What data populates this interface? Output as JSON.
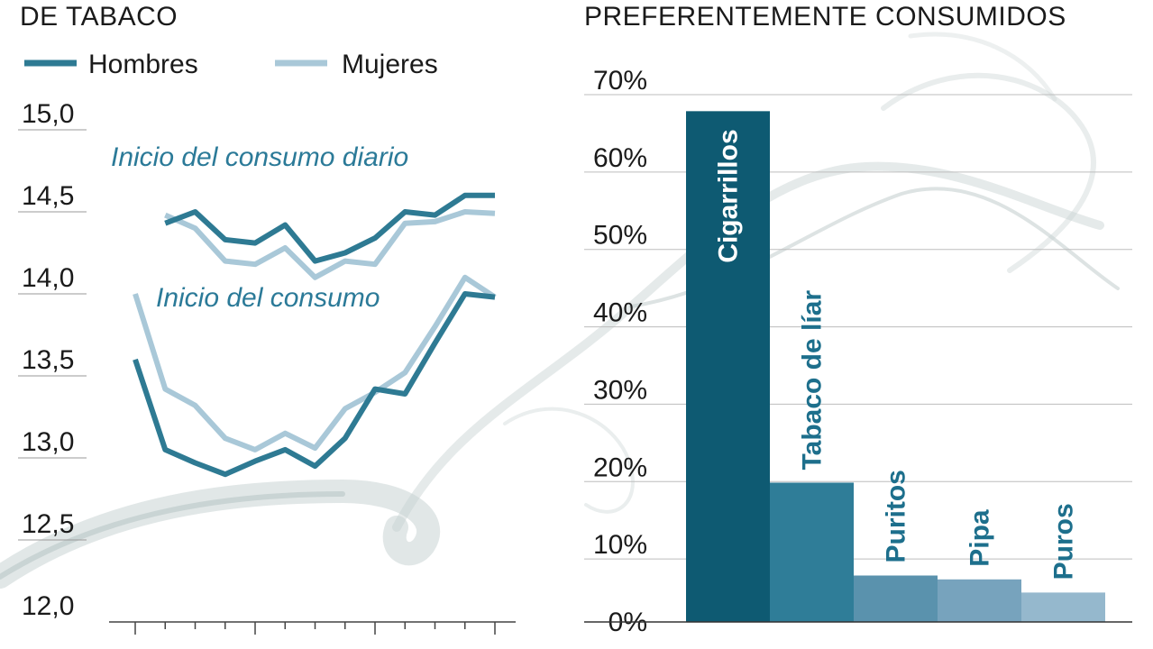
{
  "colors": {
    "hombres": "#2e7a93",
    "mujeres": "#a9c8d8",
    "annotation": "#2b7a98",
    "bars": [
      "#0e5a72",
      "#2f7d98",
      "#5a92ad",
      "#77a3bd",
      "#95b8cd"
    ],
    "bar_label_dark_bg": "#ffffff",
    "bar_label_light_bg": "#1d6f8c",
    "smoke": "#b9c8c8"
  },
  "icons": [
    "smoke-decoration"
  ],
  "chart_data": [
    {
      "type": "line",
      "title": "DE TABACO",
      "ylim": [
        12.0,
        15.0
      ],
      "yticks": [
        "15,0",
        "14,5",
        "14,0",
        "13,5",
        "13,0",
        "12,5",
        "12,0"
      ],
      "ytick_values": [
        15.0,
        14.5,
        14.0,
        13.5,
        13.0,
        12.5,
        12.0
      ],
      "grid": true,
      "legend": "top-left",
      "legend_entries": [
        "Hombres",
        "Mujeres"
      ],
      "x": [
        1,
        2,
        3,
        4,
        5,
        6,
        7,
        8,
        9,
        10,
        11,
        12,
        13
      ],
      "annotations": [
        "Inicio del consumo diario",
        "Inicio del consumo"
      ],
      "series": [
        {
          "name": "Hombres",
          "group": "Inicio del consumo diario",
          "x": [
            2,
            3,
            4,
            5,
            6,
            7,
            8,
            9,
            10,
            11,
            12,
            13
          ],
          "values": [
            14.43,
            14.5,
            14.33,
            14.31,
            14.42,
            14.2,
            14.25,
            14.34,
            14.5,
            14.48,
            14.6,
            14.6
          ]
        },
        {
          "name": "Mujeres",
          "group": "Inicio del consumo diario",
          "x": [
            2,
            3,
            4,
            5,
            6,
            7,
            8,
            9,
            10,
            11,
            12,
            13
          ],
          "values": [
            14.48,
            14.4,
            14.2,
            14.18,
            14.28,
            14.1,
            14.2,
            14.18,
            14.43,
            14.44,
            14.5,
            14.49
          ]
        },
        {
          "name": "Hombres",
          "group": "Inicio del consumo",
          "x": [
            1,
            2,
            3,
            4,
            5,
            6,
            7,
            8,
            9,
            10,
            11,
            12,
            13
          ],
          "values": [
            13.6,
            13.05,
            12.97,
            12.9,
            12.98,
            13.05,
            12.95,
            13.12,
            13.42,
            13.39,
            13.7,
            14.0,
            13.98
          ]
        },
        {
          "name": "Mujeres",
          "group": "Inicio del consumo",
          "x": [
            1,
            2,
            3,
            4,
            5,
            6,
            7,
            8,
            9,
            10,
            11,
            12,
            13
          ],
          "values": [
            14.0,
            13.42,
            13.32,
            13.12,
            13.05,
            13.15,
            13.06,
            13.3,
            13.4,
            13.52,
            13.8,
            14.1,
            13.98
          ]
        }
      ]
    },
    {
      "type": "bar",
      "title": "PREFERENTEMENTE CONSUMIDOS",
      "categories": [
        "Cigarrillos",
        "Tabaco de líar",
        "Puritos",
        "Pipa",
        "Puros"
      ],
      "values": [
        66,
        18,
        6,
        5.5,
        3.8
      ],
      "ylim": [
        0,
        70
      ],
      "yticks": [
        "70%",
        "60%",
        "50%",
        "40%",
        "30%",
        "20%",
        "10%",
        "0%"
      ],
      "ytick_values": [
        70,
        60,
        50,
        40,
        30,
        20,
        10,
        0
      ],
      "grid": true
    }
  ]
}
